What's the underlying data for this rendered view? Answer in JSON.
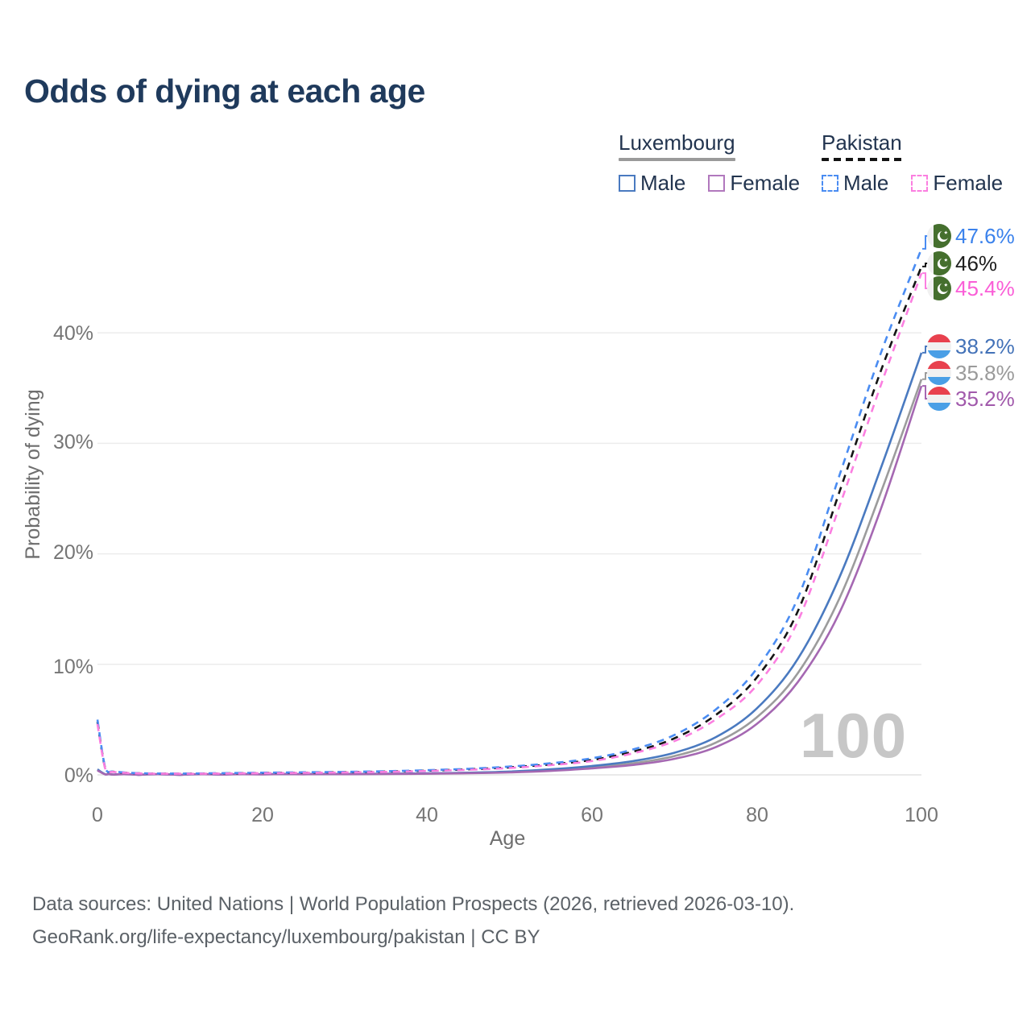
{
  "title": "Odds of dying at each age",
  "legend": {
    "groups": [
      {
        "label": "Luxembourg",
        "underline_style": "solid",
        "underline_color": "#9a9a9a",
        "items": [
          {
            "label": "Male",
            "style": "solid",
            "color": "#4a7ac0"
          },
          {
            "label": "Female",
            "style": "solid",
            "color": "#b178bd"
          }
        ]
      },
      {
        "label": "Pakistan",
        "underline_style": "dashed",
        "underline_color": "#141414",
        "items": [
          {
            "label": "Male",
            "style": "dashed",
            "color": "#4a8cf2"
          },
          {
            "label": "Female",
            "style": "dashed",
            "color": "#fb7fe0"
          }
        ]
      }
    ]
  },
  "axes": {
    "y_title": "Probability of dying",
    "x_title": "Age",
    "y_ticks": [
      "40%",
      "30%",
      "20%",
      "10%",
      "0%"
    ],
    "x_ticks": [
      "0",
      "20",
      "40",
      "60",
      "80",
      "100"
    ]
  },
  "watermark": "100",
  "end_labels": [
    {
      "series": "pakistan-male",
      "value": "47.6%",
      "color": "#3b82ec",
      "line_color": "#4a8cf2",
      "flag": "pakistan"
    },
    {
      "series": "pakistan-all",
      "value": "46%",
      "color": "#1d1d1d",
      "line_color": "#141414",
      "flag": "pakistan"
    },
    {
      "series": "pakistan-female",
      "value": "45.4%",
      "color": "#fa5ed7",
      "line_color": "#fb7fe0",
      "flag": "pakistan"
    },
    {
      "series": "luxembourg-male",
      "value": "38.2%",
      "color": "#4372b8",
      "line_color": "#4a7ac0",
      "flag": "luxembourg"
    },
    {
      "series": "luxembourg-all",
      "value": "35.8%",
      "color": "#9a9a9a",
      "line_color": "#9c9c9c",
      "flag": "luxembourg"
    },
    {
      "series": "luxembourg-female",
      "value": "35.2%",
      "color": "#a159ab",
      "line_color": "#a568b2",
      "flag": "luxembourg"
    }
  ],
  "footer": {
    "line1": "Data sources: United Nations | World Population Prospects (2026, retrieved 2026-03-10).",
    "line2": "GeoRank.org/life-expectancy/luxembourg/pakistan | CC BY"
  },
  "chart_data": {
    "type": "line",
    "title": "Odds of dying at each age",
    "xlabel": "Age",
    "ylabel": "Probability of dying",
    "xlim": [
      0,
      100
    ],
    "ylim": [
      0,
      50
    ],
    "y_tick_values_pct": [
      0,
      10,
      20,
      30,
      40
    ],
    "x_tick_values": [
      0,
      20,
      40,
      60,
      80,
      100
    ],
    "grid": "horizontal",
    "legend_position": "top-right",
    "x": [
      0,
      1,
      2,
      5,
      10,
      15,
      20,
      25,
      30,
      35,
      40,
      45,
      50,
      55,
      60,
      65,
      70,
      75,
      80,
      85,
      90,
      95,
      100
    ],
    "series": [
      {
        "name": "Luxembourg All",
        "country": "Luxembourg",
        "sex": "all",
        "style": "solid",
        "color": "#9c9c9c",
        "end_value_pct": 35.8,
        "values": [
          0.45,
          0.035,
          0.02,
          0.01,
          0.01,
          0.025,
          0.05,
          0.06,
          0.07,
          0.09,
          0.12,
          0.17,
          0.26,
          0.42,
          0.68,
          1.05,
          1.7,
          2.9,
          5.2,
          9.2,
          15.9,
          25.4,
          35.8
        ]
      },
      {
        "name": "Luxembourg Male",
        "country": "Luxembourg",
        "sex": "male",
        "style": "solid",
        "color": "#4a7ac0",
        "end_value_pct": 38.2,
        "values": [
          0.5,
          0.04,
          0.02,
          0.01,
          0.01,
          0.03,
          0.06,
          0.07,
          0.08,
          0.1,
          0.14,
          0.2,
          0.3,
          0.5,
          0.8,
          1.25,
          2.0,
          3.4,
          6.0,
          10.5,
          17.8,
          27.6,
          38.2
        ]
      },
      {
        "name": "Luxembourg Female",
        "country": "Luxembourg",
        "sex": "female",
        "style": "solid",
        "color": "#a568b2",
        "end_value_pct": 35.2,
        "values": [
          0.4,
          0.03,
          0.015,
          0.01,
          0.01,
          0.02,
          0.04,
          0.05,
          0.06,
          0.08,
          0.1,
          0.15,
          0.22,
          0.36,
          0.58,
          0.9,
          1.45,
          2.5,
          4.6,
          8.4,
          14.6,
          23.9,
          35.2
        ]
      },
      {
        "name": "Pakistan All",
        "country": "Pakistan",
        "sex": "all",
        "style": "dashed",
        "color": "#141414",
        "end_value_pct": 46.0,
        "values": [
          4.8,
          0.45,
          0.28,
          0.14,
          0.11,
          0.13,
          0.17,
          0.2,
          0.24,
          0.3,
          0.38,
          0.5,
          0.68,
          0.95,
          1.35,
          2.1,
          3.3,
          5.4,
          8.8,
          14.8,
          25.5,
          36.4,
          46.0
        ]
      },
      {
        "name": "Pakistan Male",
        "country": "Pakistan",
        "sex": "male",
        "style": "dashed",
        "color": "#4a8cf2",
        "end_value_pct": 47.6,
        "values": [
          5.0,
          0.5,
          0.3,
          0.15,
          0.12,
          0.15,
          0.2,
          0.23,
          0.27,
          0.33,
          0.42,
          0.55,
          0.75,
          1.05,
          1.5,
          2.3,
          3.6,
          5.9,
          9.6,
          16.0,
          27.0,
          38.0,
          47.6
        ]
      },
      {
        "name": "Pakistan Female",
        "country": "Pakistan",
        "sex": "female",
        "style": "dashed",
        "color": "#fb7fe0",
        "end_value_pct": 45.4,
        "values": [
          4.6,
          0.42,
          0.26,
          0.13,
          0.1,
          0.12,
          0.15,
          0.18,
          0.22,
          0.27,
          0.35,
          0.46,
          0.62,
          0.88,
          1.25,
          1.95,
          3.05,
          5.0,
          8.1,
          13.9,
          24.2,
          35.1,
          45.4
        ]
      }
    ]
  }
}
